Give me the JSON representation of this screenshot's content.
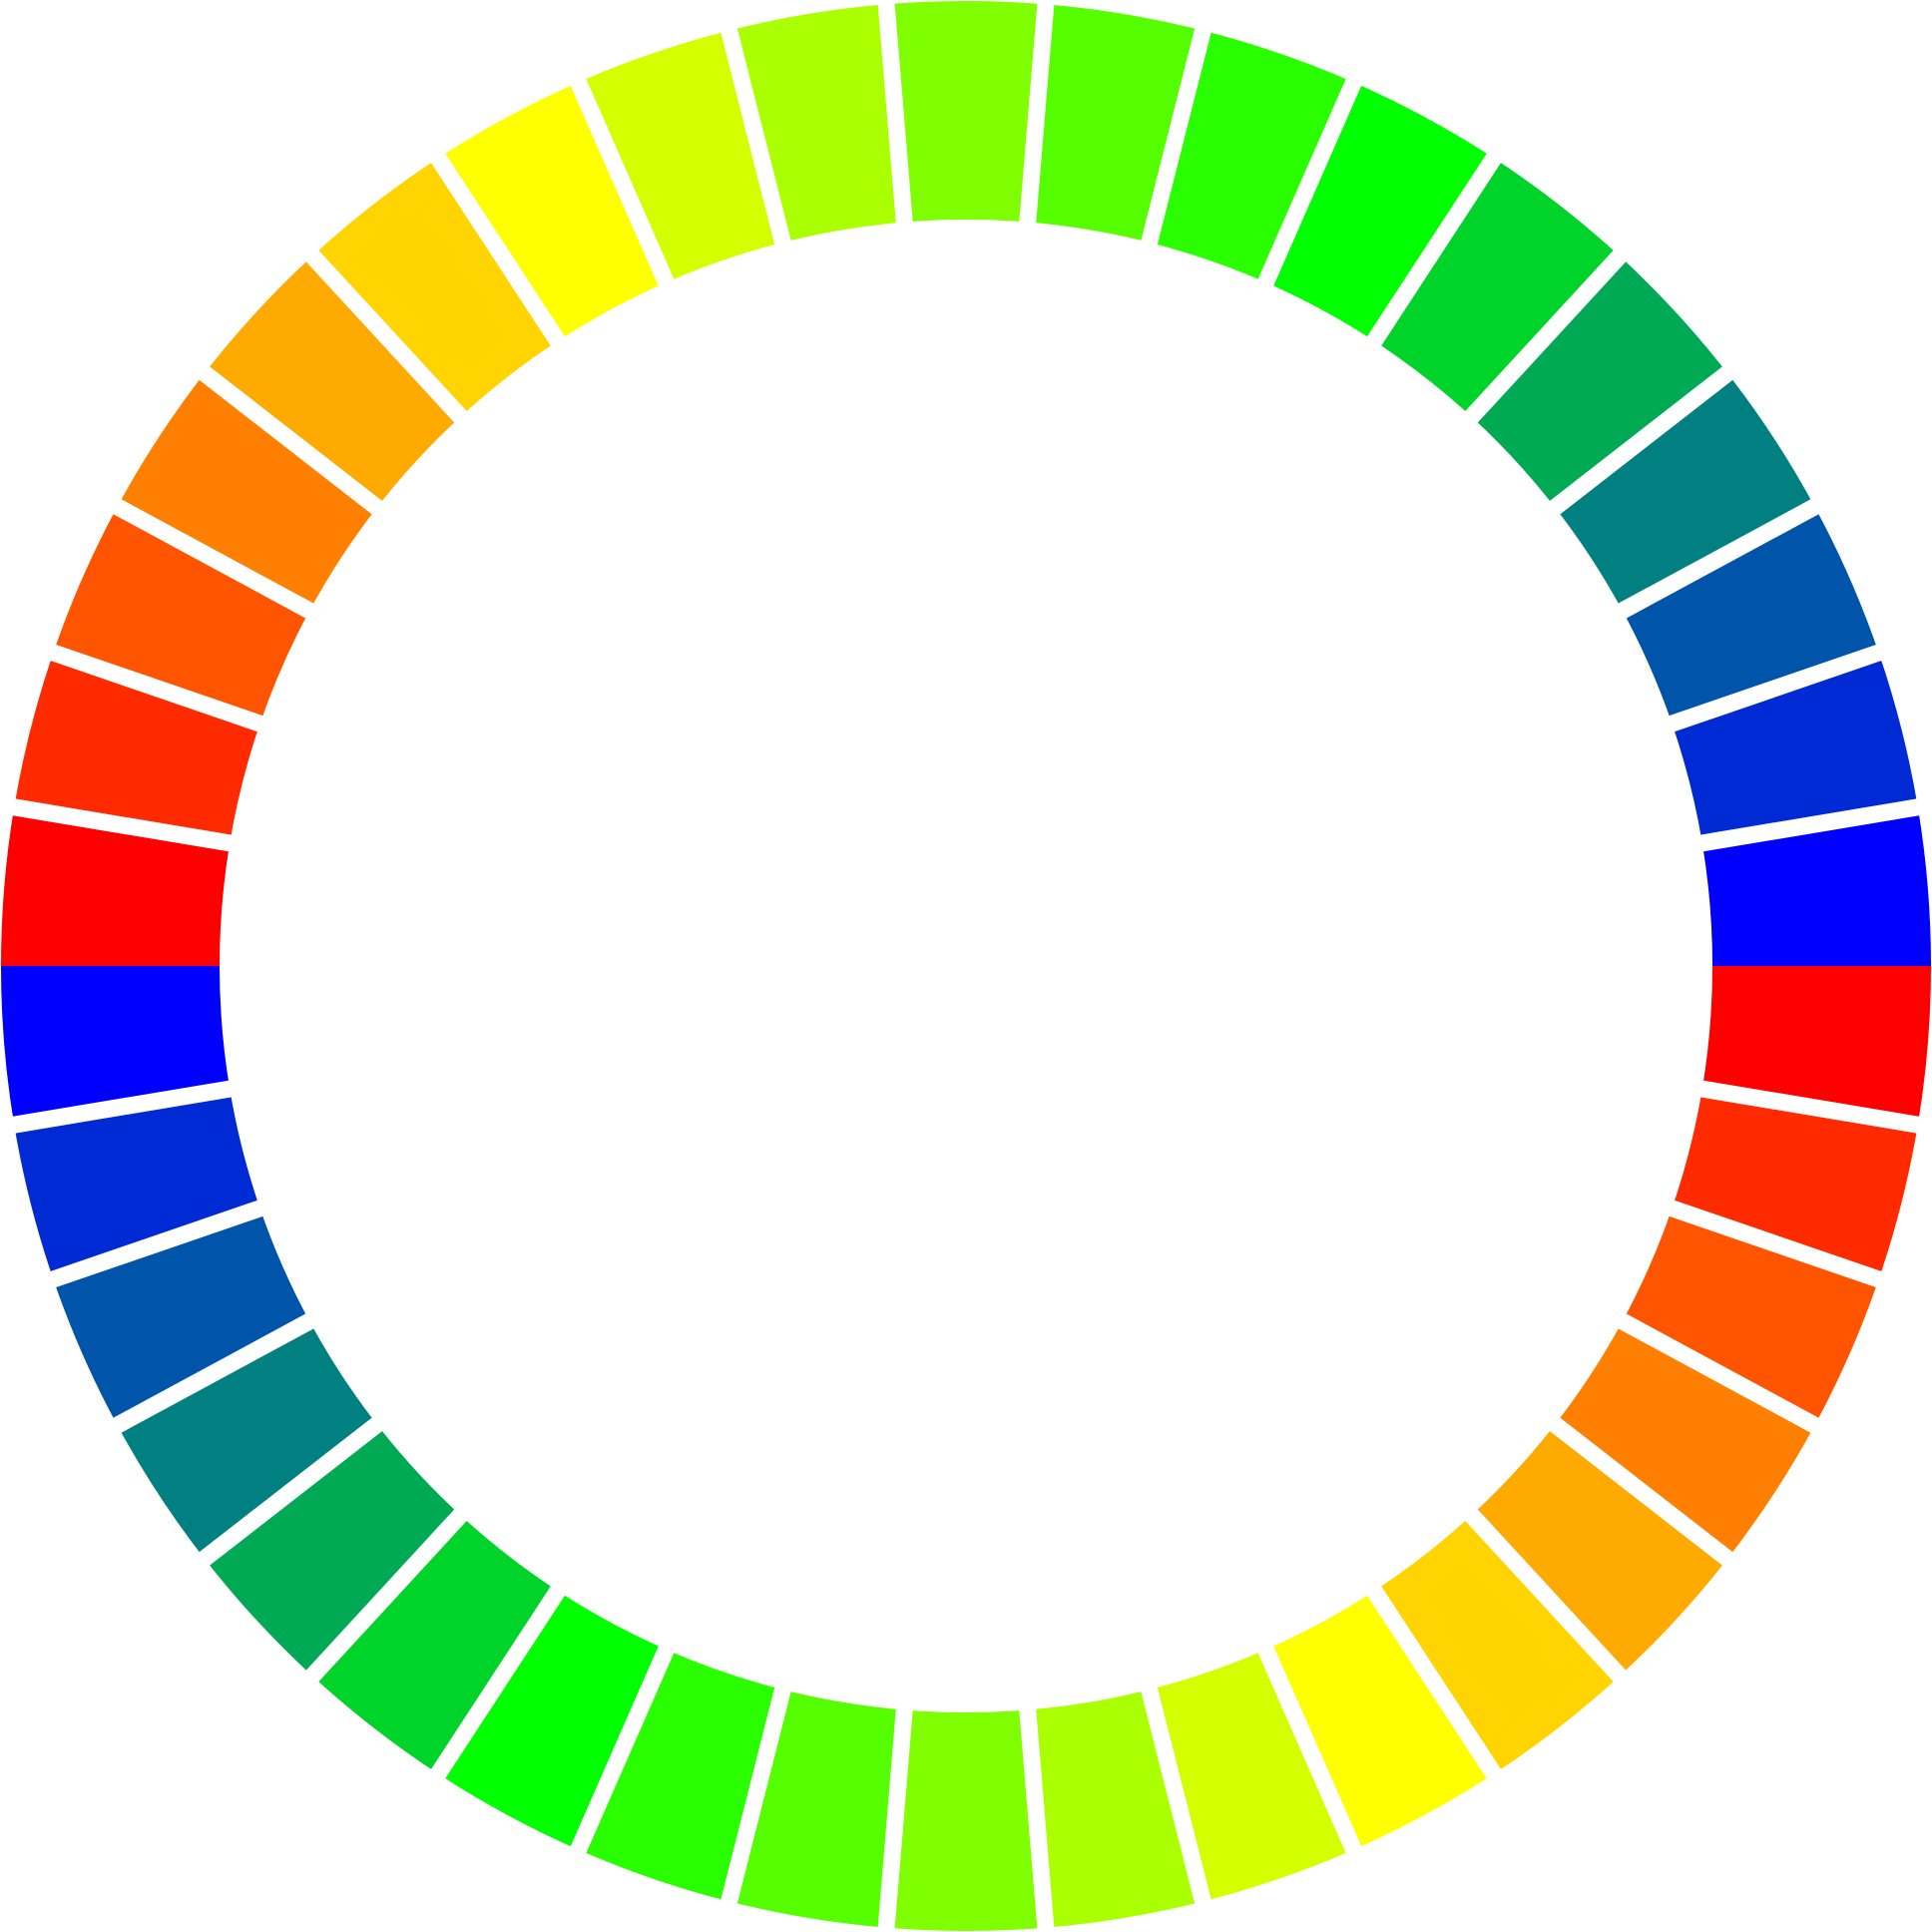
{
  "ring": {
    "colors": [
      "#0000ff",
      "#002ad4",
      "#0055aa",
      "#008080",
      "#00aa55",
      "#00d42a",
      "#00ff00",
      "#2aff00",
      "#55ff00",
      "#80ff00",
      "#aaff00",
      "#d4ff00",
      "#ffff00",
      "#ffd400",
      "#ffaa00",
      "#ff8000",
      "#ff5500",
      "#ff2a00",
      "#ff0000",
      "#0000ff",
      "#002ad4",
      "#0055aa",
      "#008080",
      "#00aa55",
      "#00d42a",
      "#00ff00",
      "#2aff00",
      "#55ff00",
      "#80ff00",
      "#aaff00",
      "#d4ff00",
      "#ffff00",
      "#ffd400",
      "#ffaa00",
      "#ff8000",
      "#ff5500",
      "#ff2a00",
      "#ff0000"
    ]
  }
}
